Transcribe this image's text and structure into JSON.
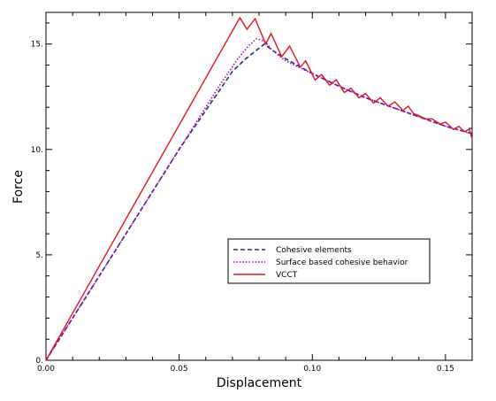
{
  "chart_data": {
    "type": "line",
    "xlabel": "Displacement",
    "ylabel": "Force",
    "xlim": [
      0.0,
      0.16
    ],
    "ylim": [
      0.0,
      16.5
    ],
    "x_ticks": [
      {
        "value": 0.0,
        "label": "0.00"
      },
      {
        "value": 0.05,
        "label": "0.05"
      },
      {
        "value": 0.1,
        "label": "0.10"
      },
      {
        "value": 0.15,
        "label": "0.15"
      }
    ],
    "y_ticks": [
      {
        "value": 0,
        "label": "0."
      },
      {
        "value": 5,
        "label": "5."
      },
      {
        "value": 10,
        "label": "10."
      },
      {
        "value": 15,
        "label": "15."
      }
    ],
    "grid": false,
    "legend_position": "center-right",
    "series": [
      {
        "name": "Cohesive elements",
        "color": "#1f2f7a",
        "dash": "dashed",
        "points": [
          [
            0,
            0
          ],
          [
            0.02,
            4.0
          ],
          [
            0.05,
            10.0
          ],
          [
            0.07,
            13.7
          ],
          [
            0.075,
            14.3
          ],
          [
            0.08,
            14.8
          ],
          [
            0.082,
            15.0
          ],
          [
            0.085,
            14.7
          ],
          [
            0.09,
            14.3
          ],
          [
            0.1,
            13.6
          ],
          [
            0.11,
            13.0
          ],
          [
            0.12,
            12.45
          ],
          [
            0.13,
            12.0
          ],
          [
            0.14,
            11.55
          ],
          [
            0.15,
            11.1
          ],
          [
            0.16,
            10.75
          ]
        ]
      },
      {
        "name": "Surface based cohesive behavior",
        "color": "#b000c8",
        "dash": "dotted",
        "points": [
          [
            0,
            0
          ],
          [
            0.02,
            4.0
          ],
          [
            0.05,
            10.0
          ],
          [
            0.065,
            13.0
          ],
          [
            0.072,
            14.3
          ],
          [
            0.076,
            14.9
          ],
          [
            0.079,
            15.25
          ],
          [
            0.082,
            15.15
          ],
          [
            0.085,
            14.7
          ],
          [
            0.09,
            14.2
          ],
          [
            0.1,
            13.6
          ],
          [
            0.11,
            13.0
          ],
          [
            0.12,
            12.45
          ],
          [
            0.13,
            12.0
          ],
          [
            0.14,
            11.55
          ],
          [
            0.15,
            11.1
          ],
          [
            0.16,
            10.75
          ]
        ]
      },
      {
        "name": "VCCT",
        "color": "#e0141e",
        "dash": "solid",
        "points": [
          [
            0,
            0
          ],
          [
            0.0728,
            16.25
          ],
          [
            0.0755,
            15.7
          ],
          [
            0.0785,
            16.2
          ],
          [
            0.0825,
            15.0
          ],
          [
            0.0845,
            15.5
          ],
          [
            0.0885,
            14.4
          ],
          [
            0.0915,
            14.9
          ],
          [
            0.0955,
            13.9
          ],
          [
            0.0975,
            14.2
          ],
          [
            0.101,
            13.3
          ],
          [
            0.1035,
            13.55
          ],
          [
            0.1065,
            13.05
          ],
          [
            0.109,
            13.3
          ],
          [
            0.112,
            12.7
          ],
          [
            0.1145,
            12.9
          ],
          [
            0.1175,
            12.45
          ],
          [
            0.12,
            12.65
          ],
          [
            0.123,
            12.2
          ],
          [
            0.1255,
            12.45
          ],
          [
            0.1285,
            12.05
          ],
          [
            0.131,
            12.25
          ],
          [
            0.134,
            11.85
          ],
          [
            0.136,
            12.05
          ],
          [
            0.138,
            11.7
          ],
          [
            0.14,
            11.6
          ],
          [
            0.1425,
            11.45
          ],
          [
            0.145,
            11.45
          ],
          [
            0.148,
            11.2
          ],
          [
            0.15,
            11.3
          ],
          [
            0.153,
            10.95
          ],
          [
            0.155,
            11.1
          ],
          [
            0.157,
            10.85
          ],
          [
            0.159,
            10.95
          ],
          [
            0.16,
            10.5
          ]
        ]
      }
    ]
  }
}
